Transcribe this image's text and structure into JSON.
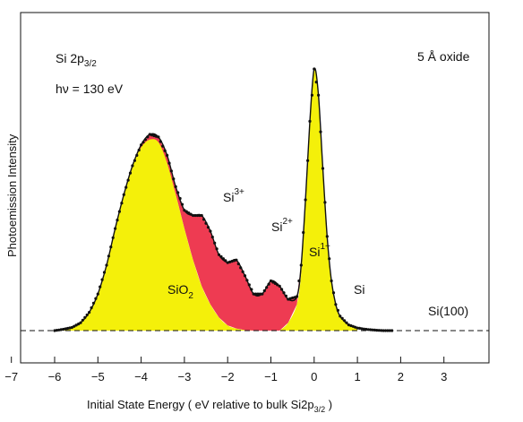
{
  "chart_data": {
    "type": "line",
    "xlabel": "Initial State Energy ( eV relative to bulk Si2p",
    "xlabel_subscript": "3/2",
    "xlabel_close": " )",
    "ylabel": "Photoemission Intensity",
    "xlim": [
      -7,
      3
    ],
    "x_ticks": [
      -7,
      -6,
      -5,
      -4,
      -3,
      -2,
      -1,
      0,
      1,
      2,
      3
    ],
    "ylim": [
      0,
      1
    ],
    "grid": false,
    "annotations": {
      "line1_main": "Si 2p",
      "line1_sub": "3/2",
      "line2": "hν = 130 eV",
      "oxide": "5 Å oxide",
      "sample": "Si(100)",
      "sio2_main": "SiO",
      "sio2_sub": "2",
      "si": "Si",
      "si3_main": "Si",
      "si3_sup": "3+",
      "si2_main": "Si",
      "si2_sup": "2+",
      "si1_main": "Si",
      "si1_sup": "1+"
    },
    "series": [
      {
        "name": "measured",
        "x": [
          -6.0,
          -5.8,
          -5.6,
          -5.4,
          -5.2,
          -5.0,
          -4.8,
          -4.6,
          -4.4,
          -4.2,
          -4.0,
          -3.8,
          -3.6,
          -3.4,
          -3.2,
          -3.0,
          -2.8,
          -2.6,
          -2.4,
          -2.2,
          -2.0,
          -1.8,
          -1.6,
          -1.4,
          -1.2,
          -1.0,
          -0.8,
          -0.6,
          -0.4,
          -0.3,
          -0.2,
          -0.1,
          0.0,
          0.1,
          0.2,
          0.3,
          0.4,
          0.5,
          0.6,
          0.8,
          1.0,
          1.2,
          1.4,
          1.6,
          1.8
        ],
        "values": [
          0.0,
          0.005,
          0.012,
          0.03,
          0.07,
          0.14,
          0.25,
          0.39,
          0.52,
          0.63,
          0.71,
          0.75,
          0.74,
          0.67,
          0.55,
          0.46,
          0.44,
          0.44,
          0.38,
          0.29,
          0.26,
          0.27,
          0.21,
          0.14,
          0.14,
          0.19,
          0.17,
          0.12,
          0.13,
          0.25,
          0.5,
          0.8,
          1.0,
          0.9,
          0.62,
          0.36,
          0.19,
          0.1,
          0.055,
          0.022,
          0.01,
          0.005,
          0.002,
          0.0,
          0.0
        ]
      },
      {
        "name": "SiO2",
        "x": [
          -6.0,
          -5.6,
          -5.2,
          -5.0,
          -4.8,
          -4.6,
          -4.4,
          -4.2,
          -4.0,
          -3.8,
          -3.6,
          -3.4,
          -3.2,
          -3.0,
          -2.8,
          -2.6,
          -2.4,
          -2.2,
          -2.0,
          -1.8,
          -1.6,
          -1.4
        ],
        "values": [
          0.0,
          0.012,
          0.07,
          0.14,
          0.25,
          0.39,
          0.52,
          0.63,
          0.7,
          0.73,
          0.72,
          0.64,
          0.52,
          0.39,
          0.27,
          0.17,
          0.1,
          0.05,
          0.02,
          0.008,
          0.002,
          0.0
        ]
      },
      {
        "name": "Si",
        "x": [
          -0.8,
          -0.6,
          -0.4,
          -0.3,
          -0.2,
          -0.1,
          0.0,
          0.1,
          0.2,
          0.3,
          0.4,
          0.5,
          0.6,
          0.8,
          1.0
        ],
        "values": [
          0.0,
          0.03,
          0.1,
          0.22,
          0.48,
          0.79,
          1.0,
          0.9,
          0.62,
          0.36,
          0.19,
          0.1,
          0.055,
          0.022,
          0.01
        ]
      }
    ]
  },
  "colors": {
    "sio2_fill": "#f4f00a",
    "si_fill": "#f4f00a",
    "suboxide_fill": "#ee3b52",
    "curve": "#111111",
    "axis": "#111111"
  }
}
